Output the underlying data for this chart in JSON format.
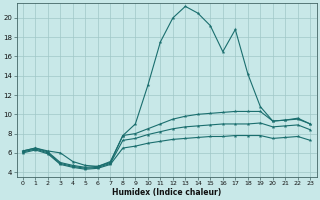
{
  "xlabel": "Humidex (Indice chaleur)",
  "bg_color": "#c8e8e8",
  "grid_color": "#a0c8c8",
  "line_color": "#1a6e6e",
  "xlim": [
    -0.5,
    23.5
  ],
  "ylim": [
    3.5,
    21.5
  ],
  "xticks": [
    0,
    1,
    2,
    3,
    4,
    5,
    6,
    7,
    8,
    9,
    10,
    11,
    12,
    13,
    14,
    15,
    16,
    17,
    18,
    19,
    20,
    21,
    22,
    23
  ],
  "yticks": [
    4,
    6,
    8,
    10,
    12,
    14,
    16,
    18,
    20
  ],
  "line1_x": [
    0,
    1,
    2,
    3,
    4,
    5,
    6,
    7,
    8,
    9,
    10,
    11,
    12,
    13,
    14,
    15,
    16,
    17,
    18,
    19,
    20,
    21,
    22,
    23
  ],
  "line1_y": [
    6.2,
    6.5,
    6.2,
    6.0,
    5.1,
    4.7,
    4.6,
    5.1,
    7.8,
    9.0,
    13.0,
    17.5,
    20.0,
    21.2,
    20.5,
    19.2,
    16.5,
    18.8,
    14.2,
    10.8,
    9.3,
    9.4,
    9.6,
    9.0
  ],
  "line2_x": [
    0,
    1,
    2,
    3,
    4,
    5,
    6,
    7,
    8,
    9,
    10,
    11,
    12,
    13,
    14,
    15,
    16,
    17,
    18,
    19,
    20,
    21,
    22,
    23
  ],
  "line2_y": [
    6.2,
    6.5,
    6.1,
    5.0,
    4.7,
    4.5,
    4.6,
    5.0,
    7.8,
    8.0,
    8.5,
    9.0,
    9.5,
    9.8,
    10.0,
    10.1,
    10.2,
    10.3,
    10.3,
    10.3,
    9.3,
    9.4,
    9.5,
    9.0
  ],
  "line3_x": [
    0,
    1,
    2,
    3,
    4,
    5,
    6,
    7,
    8,
    9,
    10,
    11,
    12,
    13,
    14,
    15,
    16,
    17,
    18,
    19,
    20,
    21,
    22,
    23
  ],
  "line3_y": [
    6.1,
    6.4,
    6.0,
    4.9,
    4.6,
    4.4,
    4.5,
    4.9,
    7.3,
    7.5,
    7.9,
    8.2,
    8.5,
    8.7,
    8.8,
    8.9,
    9.0,
    9.0,
    9.0,
    9.1,
    8.7,
    8.8,
    8.9,
    8.4
  ],
  "line4_x": [
    0,
    1,
    2,
    3,
    4,
    5,
    6,
    7,
    8,
    9,
    10,
    11,
    12,
    13,
    14,
    15,
    16,
    17,
    18,
    19,
    20,
    21,
    22,
    23
  ],
  "line4_y": [
    6.0,
    6.3,
    5.9,
    4.8,
    4.5,
    4.3,
    4.4,
    4.8,
    6.5,
    6.7,
    7.0,
    7.2,
    7.4,
    7.5,
    7.6,
    7.7,
    7.7,
    7.8,
    7.8,
    7.8,
    7.5,
    7.6,
    7.7,
    7.3
  ]
}
